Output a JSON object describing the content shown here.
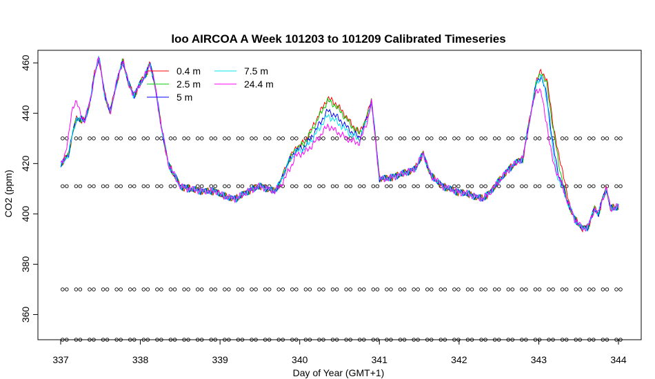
{
  "chart_data": {
    "type": "line",
    "title": "loo AIRCOA A  Week 101203 to 101209  Calibrated Timeseries",
    "xlabel": "Day of Year (GMT+1)",
    "ylabel": "CO2 (ppm)",
    "xlim": [
      337,
      344
    ],
    "ylim": [
      350,
      465
    ],
    "x_ticks": [
      "337",
      "338",
      "339",
      "340",
      "341",
      "342",
      "343",
      "344"
    ],
    "y_ticks": [
      "360",
      "380",
      "400",
      "420",
      "440",
      "460"
    ],
    "grid": false,
    "legend_position": "top-left",
    "legend": [
      {
        "name": "0.4 m",
        "color": "#ff0000"
      },
      {
        "name": "2.5 m",
        "color": "#00cc00"
      },
      {
        "name": "5 m",
        "color": "#0000ff"
      },
      {
        "name": "7.5 m",
        "color": "#00e5ee"
      },
      {
        "name": "24.4 m",
        "color": "#ff00ff"
      }
    ],
    "base_profile": [
      [
        337.0,
        419
      ],
      [
        337.1,
        424
      ],
      [
        337.15,
        432
      ],
      [
        337.2,
        438
      ],
      [
        337.3,
        437
      ],
      [
        337.38,
        446
      ],
      [
        337.42,
        455
      ],
      [
        337.48,
        462
      ],
      [
        337.55,
        448
      ],
      [
        337.62,
        440
      ],
      [
        337.7,
        452
      ],
      [
        337.78,
        461
      ],
      [
        337.85,
        452
      ],
      [
        337.92,
        447
      ],
      [
        338.0,
        452
      ],
      [
        338.08,
        456
      ],
      [
        338.12,
        460
      ],
      [
        338.18,
        452
      ],
      [
        338.25,
        437
      ],
      [
        338.35,
        420
      ],
      [
        338.5,
        411
      ],
      [
        338.6,
        410
      ],
      [
        338.8,
        409
      ],
      [
        338.95,
        409
      ],
      [
        339.05,
        407
      ],
      [
        339.2,
        406
      ],
      [
        339.35,
        409
      ],
      [
        339.5,
        411
      ],
      [
        339.6,
        410
      ],
      [
        339.68,
        409
      ],
      [
        339.75,
        412
      ],
      [
        339.85,
        420
      ],
      [
        339.95,
        425
      ],
      [
        340.05,
        426
      ],
      [
        340.15,
        430
      ],
      [
        340.25,
        435
      ],
      [
        340.35,
        440
      ],
      [
        340.45,
        438
      ],
      [
        340.55,
        435
      ],
      [
        340.65,
        432
      ],
      [
        340.75,
        430
      ],
      [
        340.85,
        438
      ],
      [
        340.9,
        445
      ],
      [
        340.95,
        430
      ],
      [
        341.0,
        414
      ],
      [
        341.1,
        414
      ],
      [
        341.2,
        415
      ],
      [
        341.3,
        416
      ],
      [
        341.45,
        418
      ],
      [
        341.55,
        424
      ],
      [
        341.65,
        415
      ],
      [
        341.8,
        411
      ],
      [
        341.95,
        409
      ],
      [
        342.1,
        408
      ],
      [
        342.2,
        407
      ],
      [
        342.3,
        406
      ],
      [
        342.4,
        409
      ],
      [
        342.5,
        413
      ],
      [
        342.6,
        417
      ],
      [
        342.7,
        420
      ],
      [
        342.8,
        422
      ],
      [
        342.9,
        440
      ],
      [
        342.97,
        452
      ],
      [
        343.03,
        455
      ],
      [
        343.1,
        448
      ],
      [
        343.18,
        430
      ],
      [
        343.25,
        418
      ],
      [
        343.35,
        406
      ],
      [
        343.45,
        398
      ],
      [
        343.55,
        394
      ],
      [
        343.62,
        395
      ],
      [
        343.7,
        402
      ],
      [
        343.75,
        400
      ],
      [
        343.8,
        406
      ],
      [
        343.85,
        410
      ],
      [
        343.9,
        402
      ],
      [
        344.0,
        403
      ]
    ],
    "marker_rows_y": [
      350,
      370,
      411,
      430
    ],
    "marker_x_start": 337.05,
    "marker_x_end": 344.0,
    "marker_count": 42
  }
}
